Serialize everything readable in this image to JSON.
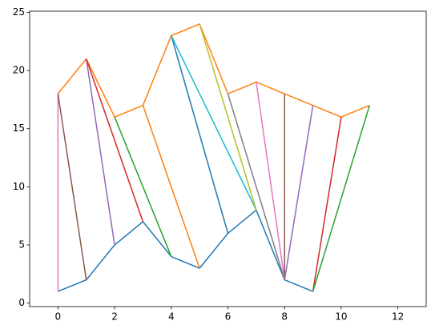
{
  "chart_data": {
    "type": "line",
    "xlim": [
      -1,
      13
    ],
    "ylim": [
      -0.3,
      25.1
    ],
    "xticks": [
      0,
      2,
      4,
      6,
      8,
      10,
      12
    ],
    "yticks": [
      0,
      5,
      10,
      15,
      20,
      25
    ],
    "series": [
      {
        "color": "#1f77b4",
        "x": [
          0,
          1,
          2,
          3,
          4,
          5,
          6,
          7,
          8,
          9
        ],
        "values": [
          1,
          2,
          5,
          7,
          4,
          3,
          6,
          8,
          2,
          1
        ]
      },
      {
        "color": "#ff7f0e",
        "x": [
          0,
          1,
          2,
          3,
          4,
          5,
          6,
          7,
          8,
          9,
          10,
          11
        ],
        "values": [
          18,
          21,
          16,
          17,
          23,
          24,
          18,
          19,
          18,
          17,
          16,
          17
        ]
      },
      {
        "color": "#e377c2",
        "x": [
          0,
          0
        ],
        "values": [
          1,
          18
        ]
      },
      {
        "color": "#8c564b",
        "x": [
          0,
          1
        ],
        "values": [
          18,
          2
        ]
      },
      {
        "color": "#9467bd",
        "x": [
          1,
          2
        ],
        "values": [
          21,
          5
        ]
      },
      {
        "color": "#d62728",
        "x": [
          1,
          3
        ],
        "values": [
          21,
          7
        ]
      },
      {
        "color": "#2ca02c",
        "x": [
          2,
          4
        ],
        "values": [
          16,
          4
        ]
      },
      {
        "color": "#ff7f0e",
        "x": [
          3,
          5
        ],
        "values": [
          17,
          3
        ]
      },
      {
        "color": "#1f77b4",
        "x": [
          4,
          6
        ],
        "values": [
          23,
          6
        ]
      },
      {
        "color": "#17becf",
        "x": [
          4,
          7
        ],
        "values": [
          23,
          8
        ]
      },
      {
        "color": "#bcbd22",
        "x": [
          5,
          7
        ],
        "values": [
          24,
          8
        ]
      },
      {
        "color": "#7f7f7f",
        "x": [
          6,
          8
        ],
        "values": [
          18,
          2
        ]
      },
      {
        "color": "#e377c2",
        "x": [
          7,
          8
        ],
        "values": [
          19,
          2
        ]
      },
      {
        "color": "#8c564b",
        "x": [
          8,
          8
        ],
        "values": [
          18,
          2
        ]
      },
      {
        "color": "#9467bd",
        "x": [
          9,
          8
        ],
        "values": [
          17,
          2
        ]
      },
      {
        "color": "#d62728",
        "x": [
          10,
          9
        ],
        "values": [
          16,
          1
        ]
      },
      {
        "color": "#2ca02c",
        "x": [
          11,
          9
        ],
        "values": [
          17,
          1
        ]
      }
    ]
  }
}
